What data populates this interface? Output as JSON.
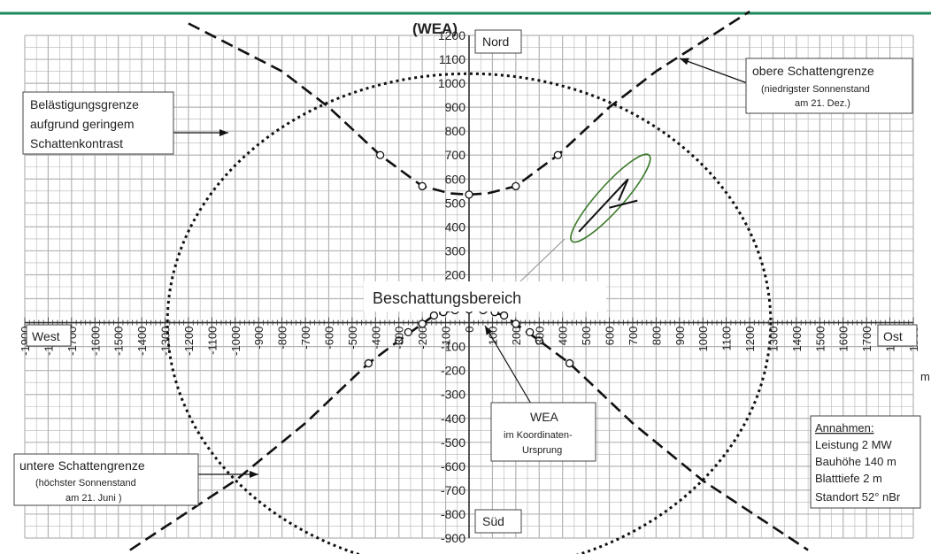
{
  "theme": {
    "top_rule_color": "#1a8a5a",
    "grid_color": "#b4b4b4",
    "curve_color": "#111111",
    "ellipse_color": "#3a7a2a",
    "pointer_color": "#999999"
  },
  "chart_data": {
    "type": "scatter",
    "title": "(WEA)",
    "x_unit": "m",
    "xlim": [
      -1900,
      1900
    ],
    "ylim": [
      -900,
      1200
    ],
    "grid": true,
    "x_ticks": [
      -1900,
      -1800,
      -1700,
      -1600,
      -1500,
      -1400,
      -1300,
      -1200,
      -1100,
      -1000,
      -900,
      -800,
      -700,
      -600,
      -500,
      -400,
      -300,
      -200,
      -100,
      0,
      100,
      200,
      300,
      400,
      500,
      600,
      700,
      800,
      900,
      1000,
      1100,
      1200,
      1300,
      1400,
      1500,
      1600,
      1700,
      1800,
      1900
    ],
    "y_ticks": [
      1200,
      1100,
      1000,
      900,
      800,
      700,
      600,
      500,
      400,
      300,
      200,
      100,
      0,
      -100,
      -200,
      -300,
      -400,
      -500,
      -600,
      -700,
      -800,
      -900
    ],
    "direction_labels": {
      "north": "Nord",
      "south": "Süd",
      "west": "West",
      "east": "Ost"
    },
    "series": [
      {
        "style": "long-dash",
        "points": [
          [
            -1200,
            1250
          ],
          [
            -800,
            1050
          ],
          [
            -600,
            900
          ],
          [
            -380,
            700
          ],
          [
            -200,
            570
          ],
          [
            -80,
            540
          ],
          [
            0,
            535
          ],
          [
            80,
            540
          ],
          [
            200,
            570
          ],
          [
            380,
            700
          ],
          [
            600,
            900
          ],
          [
            800,
            1050
          ],
          [
            1200,
            1300
          ]
        ]
      },
      {
        "style": "long-dash",
        "points": [
          [
            -1450,
            -950
          ],
          [
            -1000,
            -660
          ],
          [
            -700,
            -420
          ],
          [
            -430,
            -170
          ],
          [
            -300,
            -75
          ],
          [
            -200,
            -5
          ],
          [
            -150,
            30
          ],
          [
            -80,
            50
          ],
          [
            0,
            55
          ],
          [
            80,
            50
          ],
          [
            150,
            30
          ],
          [
            200,
            -5
          ],
          [
            300,
            -75
          ],
          [
            430,
            -170
          ],
          [
            700,
            -420
          ],
          [
            1000,
            -660
          ],
          [
            1450,
            -950
          ]
        ]
      },
      {
        "style": "dotted",
        "shape": "ellipse",
        "center": [
          0,
          0
        ],
        "semi_axis_x": 1290,
        "semi_axis_y": 1040
      }
    ],
    "markers": [
      [
        -380,
        700
      ],
      [
        -200,
        570
      ],
      [
        0,
        535
      ],
      [
        200,
        570
      ],
      [
        380,
        700
      ],
      [
        -430,
        -170
      ],
      [
        -300,
        -75
      ],
      [
        -260,
        -40
      ],
      [
        -200,
        -5
      ],
      [
        -150,
        30
      ],
      [
        -110,
        44
      ],
      [
        -60,
        52
      ],
      [
        0,
        55
      ],
      [
        60,
        52
      ],
      [
        110,
        44
      ],
      [
        150,
        30
      ],
      [
        200,
        -5
      ],
      [
        260,
        -40
      ],
      [
        300,
        -75
      ],
      [
        430,
        -170
      ]
    ],
    "turbine_ellipse": {
      "from": [
        440,
        340
      ],
      "to": [
        770,
        700
      ],
      "semi_minor": 55
    },
    "blade_lines": [
      [
        [
          470,
          380
        ],
        [
          680,
          600
        ]
      ],
      [
        [
          680,
          600
        ],
        [
          640,
          510
        ]
      ],
      [
        [
          600,
          480
        ],
        [
          720,
          510
        ]
      ]
    ],
    "labels": {
      "top_right": [
        "obere Schattengrenze",
        "(niedrigster Sonnenstand",
        "am 21. Dez.)"
      ],
      "left": [
        "Belästigungsgrenze",
        "aufgrund geringem",
        "Schattenkontrast"
      ],
      "shading_area": "Beschattungsbereich",
      "wea": [
        "WEA",
        "im Koordinaten-",
        "Ursprung"
      ],
      "bottom_left": [
        "untere Schattengrenze",
        "(höchster Sonnenstand",
        "am 21. Juni )"
      ],
      "assumptions_title": "Annahmen:",
      "assumptions": [
        "Leistung 2 MW",
        "Bauhöhe 140 m",
        "Blatttiefe 2 m",
        "Standort 52° nBr"
      ]
    }
  }
}
